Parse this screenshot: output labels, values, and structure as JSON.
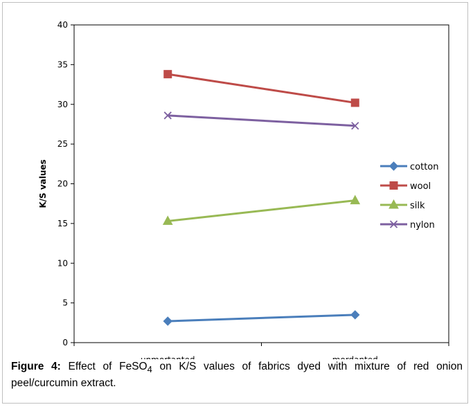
{
  "chart_data": {
    "type": "line",
    "categories": [
      "unmortanted",
      "mordanted"
    ],
    "ylabel": "K/S values",
    "ylim": [
      0,
      40
    ],
    "yticks": [
      "0",
      "5",
      "10",
      "15",
      "20",
      "25",
      "30",
      "35",
      "40"
    ],
    "grid": false,
    "legend_position": "right",
    "series": [
      {
        "name": "cotton",
        "values": [
          2.7,
          3.5
        ],
        "color": "#4a7ebb",
        "marker": "diamond"
      },
      {
        "name": "wool",
        "values": [
          33.8,
          30.2
        ],
        "color": "#be4b48",
        "marker": "square"
      },
      {
        "name": "silk",
        "values": [
          15.3,
          17.9
        ],
        "color": "#98b954",
        "marker": "triangle"
      },
      {
        "name": "nylon",
        "values": [
          28.6,
          27.3
        ],
        "color": "#7d60a0",
        "marker": "x"
      }
    ]
  },
  "caption": {
    "label": "Figure 4:",
    "text_before_sub": " Effect of FeSO",
    "subscript": "4",
    "text_after_sub": " on K/S values of fabrics dyed with mixture of red onion peel/curcumin extract."
  }
}
